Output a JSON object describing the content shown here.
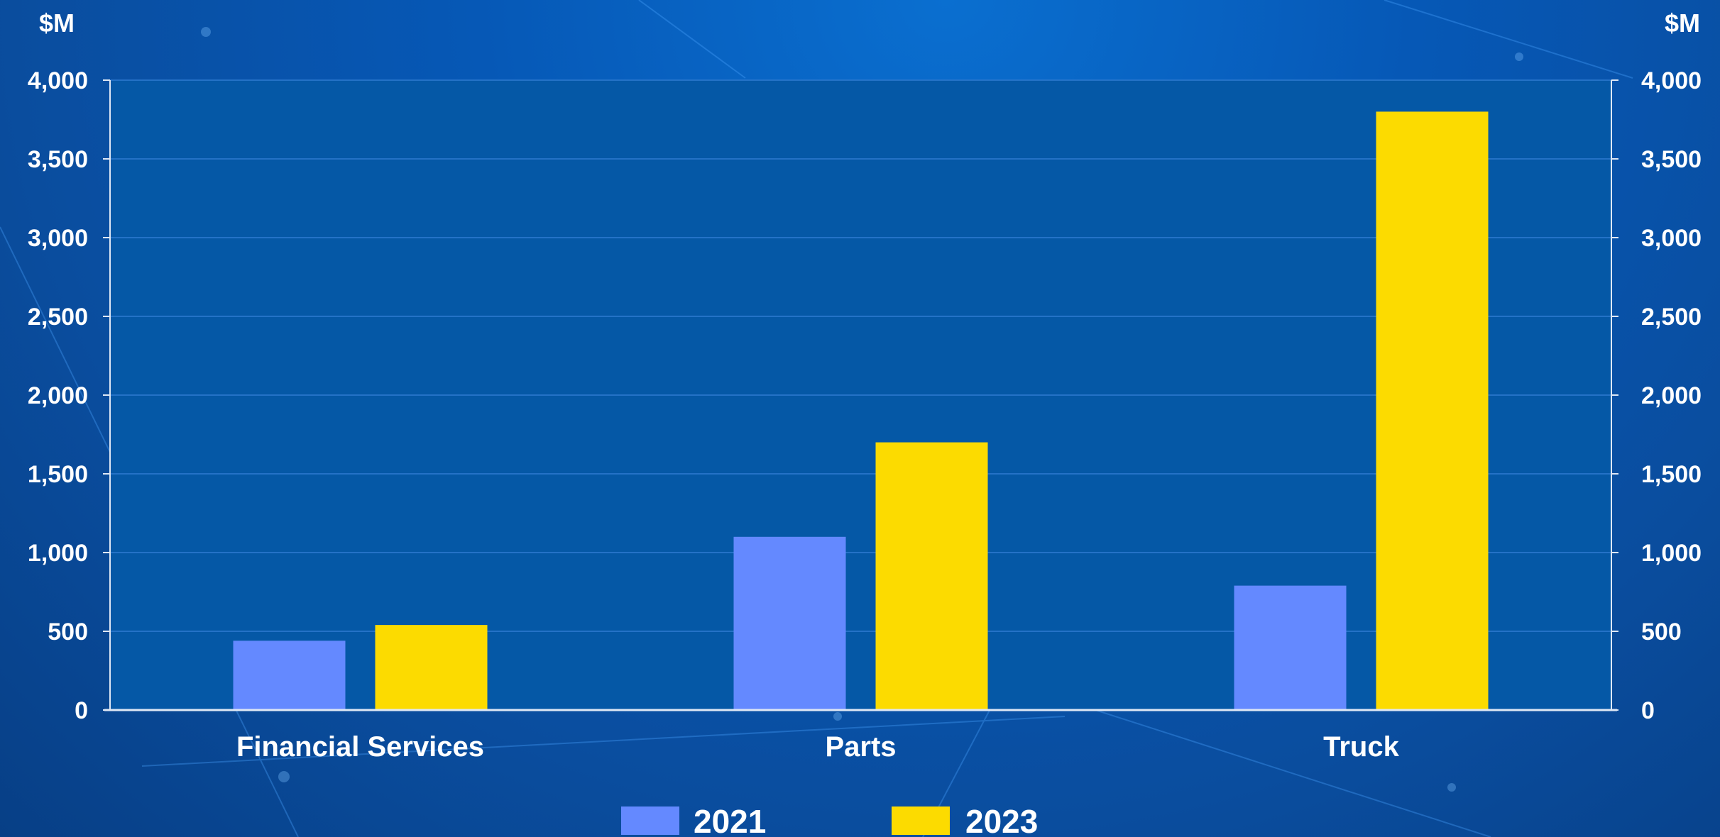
{
  "chart_data": {
    "type": "bar",
    "categories": [
      "Financial Services",
      "Parts",
      "Truck"
    ],
    "series": [
      {
        "name": "2021",
        "values": [
          440,
          1100,
          790
        ]
      },
      {
        "name": "2023",
        "values": [
          540,
          1700,
          3800
        ]
      }
    ],
    "ylim": [
      0,
      4000
    ],
    "yticks": [
      "0",
      "500",
      "1,000",
      "1,500",
      "2,000",
      "2,500",
      "3,000",
      "3,500",
      "4,000"
    ],
    "ytick_values": [
      0,
      500,
      1000,
      1500,
      2000,
      2500,
      3000,
      3500,
      4000
    ],
    "y_unit_left": "$M",
    "y_unit_right": "$M",
    "grid": true,
    "legend_position": "bottom",
    "colors": {
      "2021": "#6489ff",
      "2023": "#fcdb00",
      "plot_background": "#0558a6",
      "gridline": "#2f7ad0",
      "text": "#ffffff"
    }
  }
}
